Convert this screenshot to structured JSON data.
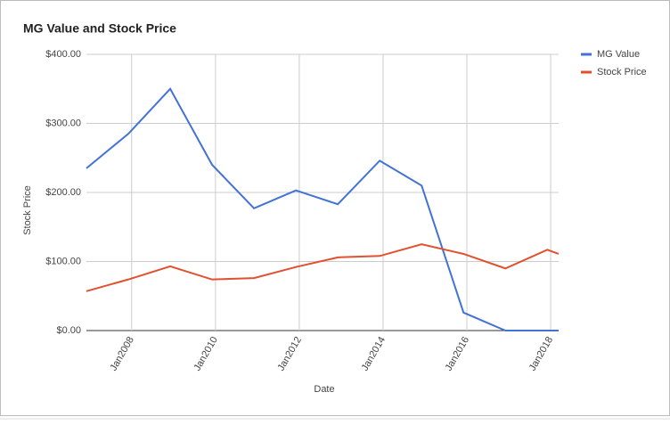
{
  "chart_data": {
    "type": "line",
    "title": "MG Value and Stock Price",
    "x_label": "Date",
    "y_label": "Stock Price",
    "x": [
      2006.92,
      2007.92,
      2008.92,
      2009.92,
      2010.92,
      2011.92,
      2012.92,
      2013.92,
      2014.92,
      2015.92,
      2016.92,
      2017.92,
      2018.19
    ],
    "series": [
      {
        "name": "MG Value",
        "color": "#4372d6",
        "values": [
          235,
          285,
          350,
          240,
          177,
          203,
          183,
          246,
          210,
          26,
          0,
          0,
          0
        ]
      },
      {
        "name": "Stock Price",
        "color": "#e2502f",
        "values": [
          57,
          74,
          93,
          74,
          76,
          92,
          106,
          108,
          125,
          111,
          90,
          117,
          111
        ]
      }
    ],
    "xlim": [
      2006.92,
      2018.19
    ],
    "xticks": [
      {
        "value": 2008,
        "label": "Jan2008"
      },
      {
        "value": 2010,
        "label": "Jan2010"
      },
      {
        "value": 2012,
        "label": "Jan2012"
      },
      {
        "value": 2014,
        "label": "Jan2014"
      },
      {
        "value": 2016,
        "label": "Jan2016"
      },
      {
        "value": 2018,
        "label": "Jan2018"
      }
    ],
    "ylim": [
      0,
      400
    ],
    "yticks": [
      {
        "value": 0,
        "label": "$0.00"
      },
      {
        "value": 100,
        "label": "$100.00"
      },
      {
        "value": 200,
        "label": "$200.00"
      },
      {
        "value": 300,
        "label": "$300.00"
      },
      {
        "value": 400,
        "label": "$400.00"
      }
    ],
    "grid": true,
    "legend": "right"
  }
}
